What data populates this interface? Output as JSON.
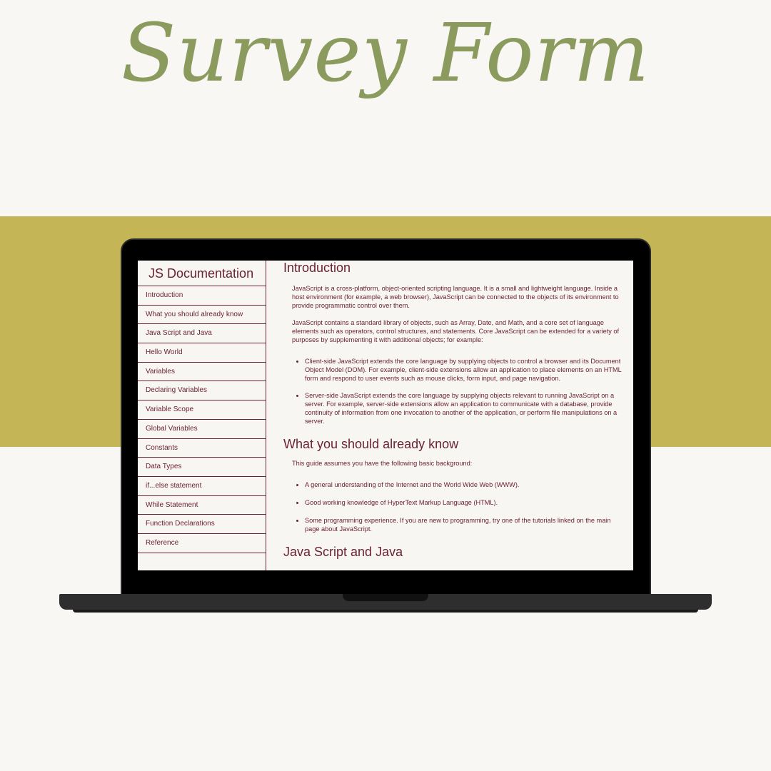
{
  "headline": "Survey Form",
  "colors": {
    "background": "#f9f7f3",
    "band": "#c4b557",
    "headline": "#8b9b5e",
    "accent": "#6b2232",
    "laptop": "#000000"
  },
  "sidebar": {
    "title": "JS Documentation",
    "items": [
      {
        "label": "Introduction"
      },
      {
        "label": "What you should already know"
      },
      {
        "label": "Java Script and Java"
      },
      {
        "label": "Hello World"
      },
      {
        "label": "Variables"
      },
      {
        "label": "Declaring Variables"
      },
      {
        "label": "Variable Scope"
      },
      {
        "label": "Global Variables"
      },
      {
        "label": "Constants"
      },
      {
        "label": "Data Types"
      },
      {
        "label": "if...else statement"
      },
      {
        "label": "While Statement"
      },
      {
        "label": "Function Declarations"
      },
      {
        "label": "Reference"
      }
    ]
  },
  "main": {
    "intro": {
      "title": "Introduction",
      "p1": "JavaScript is a cross-platform, object-oriented scripting language. It is a small and lightweight language. Inside a host environment (for example, a web browser), JavaScript can be connected to the objects of its environment to provide programmatic control over them.",
      "p2": "JavaScript contains a standard library of objects, such as Array, Date, and Math, and a core set of language elements such as operators, control structures, and statements. Core JavaScript can be extended for a variety of purposes by supplementing it with additional objects; for example:",
      "bullets": [
        "Client-side JavaScript extends the core language by supplying objects to control a browser and its Document Object Model (DOM). For example, client-side extensions allow an application to place elements on an HTML form and respond to user events such as mouse clicks, form input, and page navigation.",
        "Server-side JavaScript extends the core language by supplying objects relevant to running JavaScript on a server. For example, server-side extensions allow an application to communicate with a database, provide continuity of information from one invocation to another of the application, or perform file manipulations on a server."
      ]
    },
    "know": {
      "title": "What you should already know",
      "p1": "This guide assumes you have the following basic background:",
      "bullets": [
        "A general understanding of the Internet and the World Wide Web (WWW).",
        "Good working knowledge of HyperText Markup Language (HTML).",
        "Some programming experience. If you are new to programming, try one of the tutorials linked on the main page about JavaScript."
      ]
    },
    "java": {
      "title": "Java Script and Java"
    }
  }
}
